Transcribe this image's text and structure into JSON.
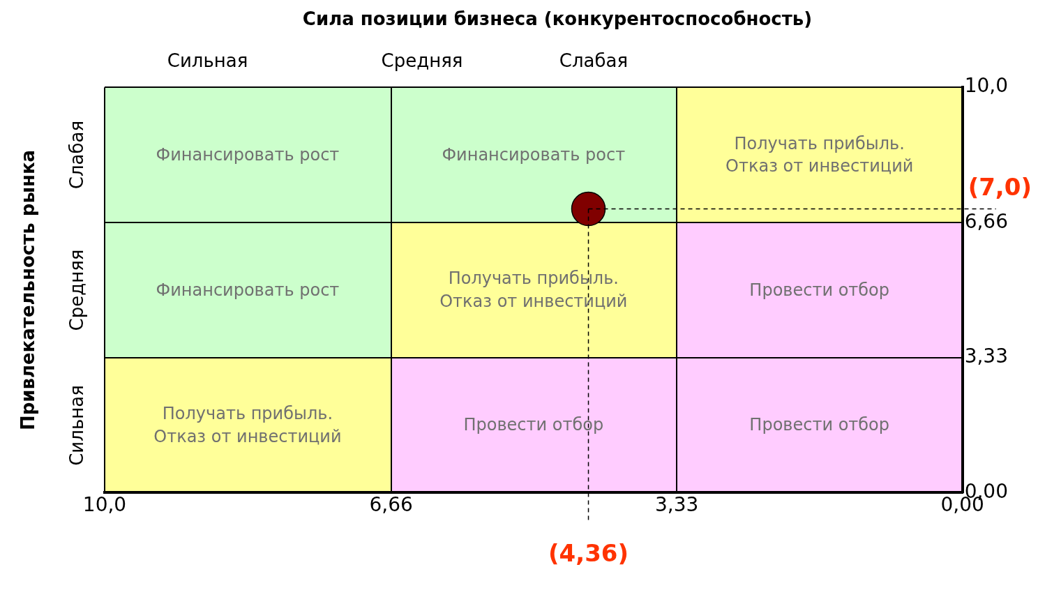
{
  "chart_data": {
    "type": "scatter",
    "title": "Сила позиции бизнеса (конкурентоспособность)",
    "ylabel": "Привлекательность рынка",
    "series": [
      {
        "color": "#800000",
        "values": [
          7
        ],
        "x": [
          4.36
        ]
      }
    ],
    "marker": "circle",
    "xlim": [
      10,
      0
    ],
    "xticks": [
      {
        "value": 10,
        "label": "10,0"
      },
      {
        "value": 6.66,
        "label": "6,66"
      },
      {
        "value": 3.33,
        "label": "3,33"
      },
      {
        "value": 0,
        "label": "0,00"
      }
    ],
    "ylim": [
      0,
      10
    ],
    "yticks": [
      {
        "value": 0,
        "label": "0,00"
      },
      {
        "value": 3.33,
        "label": "3,33"
      },
      {
        "value": 6.66,
        "label": "6,66"
      },
      {
        "value": 10,
        "label": "10,0"
      }
    ],
    "grid": true,
    "ref_lines": [
      {
        "axis": "x",
        "value": 4.36,
        "label": "(4,36)",
        "line_style": "dashed"
      },
      {
        "axis": "y",
        "value": 7,
        "label": "(7,0)",
        "line_style": "dashed"
      }
    ],
    "annotations": [
      "Финансировать рост",
      "Финансировать рост",
      "Получать прибыль.\nОтказ от инвестиций",
      "Финансировать рост",
      "Получать прибыль.\nОтказ от инвестиций",
      "Провести отбор",
      "Получать прибыль.\nОтказ от инвестиций",
      "Провести отбор",
      "Провести отбор",
      "Сильная",
      "Средняя",
      "Слабая",
      "Слабая",
      "Средняя",
      "Сильная"
    ]
  }
}
